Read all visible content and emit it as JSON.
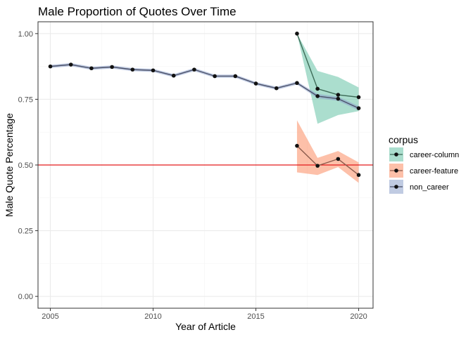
{
  "chart_data": {
    "type": "line",
    "title": "Male Proportion of Quotes Over Time",
    "xlabel": "Year of Article",
    "ylabel": "Male Quote Percentage",
    "xlim": [
      2004.4,
      2020.7
    ],
    "ylim": [
      -0.045,
      1.045
    ],
    "x_ticks": [
      2005,
      2010,
      2015,
      2020
    ],
    "y_ticks": [
      0.0,
      0.25,
      0.5,
      0.75,
      1.0
    ],
    "x_tick_labels": [
      "2005",
      "2010",
      "2015",
      "2020"
    ],
    "y_tick_labels": [
      "0.00",
      "0.25",
      "0.50",
      "0.75",
      "1.00"
    ],
    "grid": true,
    "reference_line": {
      "y": 0.5,
      "color": "#e41a1c"
    },
    "legend": {
      "title": "corpus",
      "position": "right"
    },
    "series": [
      {
        "name": "career-column",
        "color": "#1b9e77",
        "ribbon_color": "#66c2a5",
        "line_color": "#3d6b57",
        "x": [
          2017,
          2018,
          2019,
          2020
        ],
        "values": [
          1.0,
          0.79,
          0.767,
          0.758
        ],
        "lower": [
          1.0,
          0.657,
          0.69,
          0.705
        ],
        "upper": [
          1.0,
          0.858,
          0.835,
          0.795
        ]
      },
      {
        "name": "career-feature",
        "color": "#d95f02",
        "ribbon_color": "#fc8d62",
        "line_color": "#8a5a4c",
        "x": [
          2017,
          2018,
          2019,
          2020
        ],
        "values": [
          0.573,
          0.497,
          0.523,
          0.462
        ],
        "lower": [
          0.472,
          0.462,
          0.492,
          0.432
        ],
        "upper": [
          0.67,
          0.527,
          0.553,
          0.51
        ]
      },
      {
        "name": "non_career",
        "color": "#7570b3",
        "ribbon_color": "#8da0cb",
        "line_color": "#4a5068",
        "x": [
          2005,
          2006,
          2007,
          2008,
          2009,
          2010,
          2011,
          2012,
          2013,
          2014,
          2015,
          2016,
          2017,
          2018,
          2019,
          2020
        ],
        "values": [
          0.875,
          0.882,
          0.868,
          0.873,
          0.863,
          0.86,
          0.84,
          0.863,
          0.838,
          0.838,
          0.81,
          0.792,
          0.812,
          0.762,
          0.752,
          0.716
        ],
        "lower": [
          0.869,
          0.876,
          0.862,
          0.867,
          0.857,
          0.854,
          0.834,
          0.857,
          0.832,
          0.832,
          0.804,
          0.786,
          0.806,
          0.754,
          0.744,
          0.708
        ],
        "upper": [
          0.881,
          0.888,
          0.874,
          0.879,
          0.869,
          0.866,
          0.846,
          0.869,
          0.844,
          0.844,
          0.816,
          0.798,
          0.818,
          0.77,
          0.76,
          0.724
        ]
      }
    ]
  }
}
